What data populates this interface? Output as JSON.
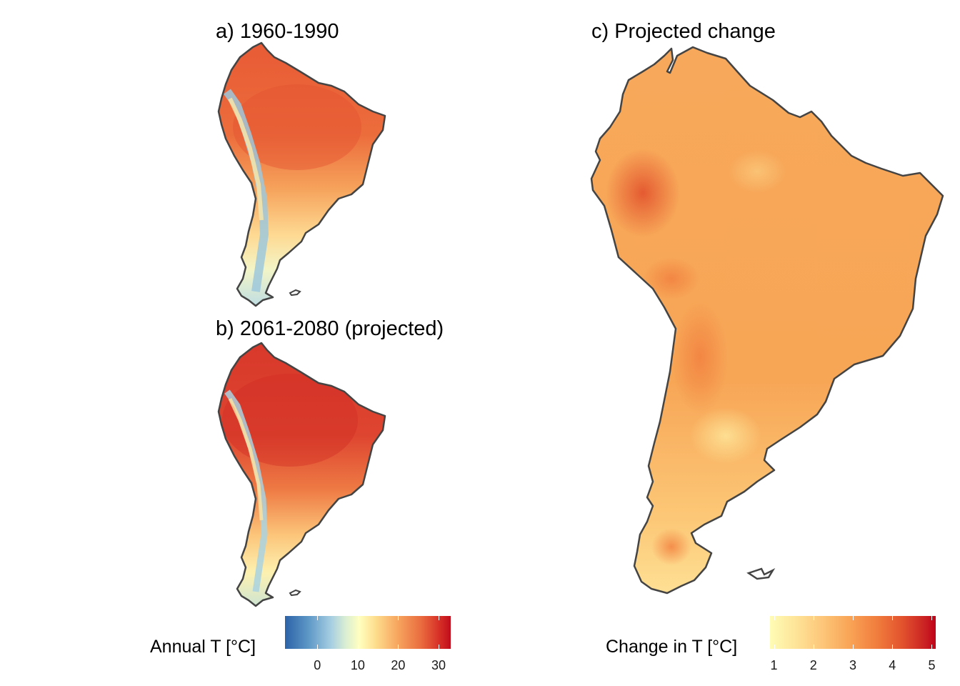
{
  "panels": {
    "a": {
      "title": "a) 1960-1990"
    },
    "b": {
      "title": "b) 2061-2080 (projected)"
    },
    "c": {
      "title": "c) Projected change"
    }
  },
  "legends": {
    "temperature": {
      "title": "Annual T [°C]",
      "ticks": [
        "0",
        "10",
        "20",
        "30"
      ],
      "tick_values": [
        0,
        10,
        20,
        30
      ],
      "range": [
        -8,
        33
      ],
      "palette": "RdYlBu-reversed"
    },
    "change": {
      "title": "Change in T [°C]",
      "ticks": [
        "1",
        "2",
        "3",
        "4",
        "5"
      ],
      "tick_values": [
        1,
        2,
        3,
        4,
        5
      ],
      "range": [
        0.9,
        5.1
      ],
      "palette": "YlOrRd"
    }
  },
  "colors": {
    "outline": "#444444",
    "warm_core": "#e4572e",
    "cool_andes": "#9ec8dc",
    "change_base": "#f6a55a"
  }
}
